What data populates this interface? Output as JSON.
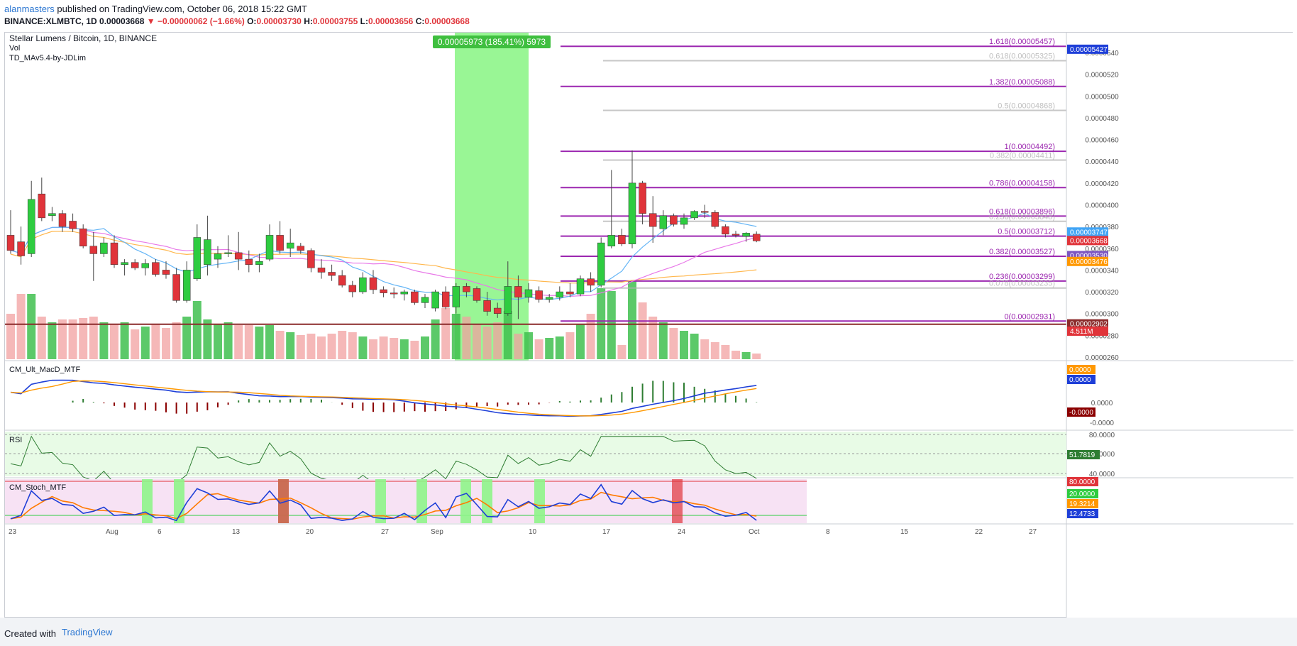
{
  "header": {
    "user": "alanmasters",
    "published_text": " published on TradingView.com, October 06, 2018 15:22 GMT",
    "symbol": "BINANCE:XLMBTC, 1D",
    "price": "0.00003668",
    "change": "▼ −0.00000062 (−1.66%)",
    "open_label": "O:",
    "open": "0.00003730",
    "high_label": "H:",
    "high": "0.00003755",
    "low_label": "L:",
    "low": "0.00003656",
    "close_label": "C:",
    "close": "0.00003668"
  },
  "legend": {
    "title": "Stellar Lumens / Bitcoin, 1D, BINANCE",
    "vol": "Vol",
    "td": "TD_MAv5.4-by-JDLim"
  },
  "measure_label": "0.00005973 (185.41%) 5973",
  "fib_levels": [
    {
      "label": "1.618(0.00005457)",
      "price": 5.457e-05,
      "color": "#9c27b0",
      "set": "A"
    },
    {
      "label": "1.382(0.00005088)",
      "price": 5.088e-05,
      "color": "#9c27b0",
      "set": "A"
    },
    {
      "label": "1(0.00004492)",
      "price": 4.492e-05,
      "color": "#9c27b0",
      "set": "A"
    },
    {
      "label": "0.786(0.00004158)",
      "price": 4.158e-05,
      "color": "#9c27b0",
      "set": "A"
    },
    {
      "label": "0.618(0.00003896)",
      "price": 3.896e-05,
      "color": "#9c27b0",
      "set": "A"
    },
    {
      "label": "0.5(0.00003712)",
      "price": 3.712e-05,
      "color": "#9c27b0",
      "set": "A"
    },
    {
      "label": "0.382(0.00003527)",
      "price": 3.527e-05,
      "color": "#9c27b0",
      "set": "A"
    },
    {
      "label": "0.236(0.00003299)",
      "price": 3.299e-05,
      "color": "#9c27b0",
      "set": "A"
    },
    {
      "label": "0(0.00002931)",
      "price": 2.931e-05,
      "color": "#9c27b0",
      "set": "A"
    },
    {
      "label": "0.618(0.00005325)",
      "price": 5.325e-05,
      "color": "#b0b0b0",
      "set": "B"
    },
    {
      "label": "0.5(0.00004868)",
      "price": 4.868e-05,
      "color": "#b0b0b0",
      "set": "B"
    },
    {
      "label": "0.382(0.00004411)",
      "price": 4.411e-05,
      "color": "#b0b0b0",
      "set": "B"
    },
    {
      "label": "0.236(0.00003848)",
      "price": 3.848e-05,
      "color": "#b0b0b0",
      "set": "B"
    },
    {
      "label": "0.078(0.00003235)",
      "price": 3.235e-05,
      "color": "#b0b0b0",
      "set": "B"
    }
  ],
  "price_axis_ticks": [
    "0.0000540",
    "0.0000520",
    "0.0000500",
    "0.0000480",
    "0.0000460",
    "0.0000440",
    "0.0000420",
    "0.0000400",
    "0.0000380",
    "0.0000360",
    "0.0000340",
    "0.0000320",
    "0.0000300",
    "0.0000280",
    "0.0000260"
  ],
  "price_axis_values": [
    5.4e-05,
    5.2e-05,
    5e-05,
    4.8e-05,
    4.6e-05,
    4.4e-05,
    4.2e-05,
    4e-05,
    3.8e-05,
    3.6e-05,
    3.4e-05,
    3.2e-05,
    3e-05,
    2.8e-05,
    2.6e-05
  ],
  "price_badges": [
    {
      "label": "0.00005427",
      "value": 5.427e-05,
      "color": "#1e3fd8"
    },
    {
      "label": "0.00003747",
      "value": 3.747e-05,
      "color": "#42a5f5"
    },
    {
      "label": "0.00003668",
      "value": 3.668e-05,
      "color": "#e0343a"
    },
    {
      "label": "0.00003530",
      "value": 3.53e-05,
      "color": "#7e57c2"
    },
    {
      "label": "0.00003476",
      "value": 3.476e-05,
      "color": "#ff9800"
    },
    {
      "label": "0.00002902",
      "value": 2.902e-05,
      "color": "#8b2b2b"
    },
    {
      "label": "4.511M",
      "value": 2.835e-05,
      "color": "#e0343a"
    }
  ],
  "x_axis": [
    "23",
    "Aug",
    "6",
    "13",
    "20",
    "27",
    "Sep",
    "10",
    "17",
    "24",
    "Oct",
    "8",
    "15",
    "22",
    "27"
  ],
  "macd_title": "CM_Ult_MacD_MTF",
  "macd_badges": [
    {
      "label": "0.0000",
      "color": "#ff9800"
    },
    {
      "label": "0.0000",
      "color": "#1e3fd8"
    },
    {
      "label": "-0.0000",
      "color": "#8b0000"
    }
  ],
  "macd_axis": [
    "0.0000",
    "-0.0000"
  ],
  "rsi_title": "RSI",
  "rsi_axis": [
    "80.0000",
    "60.0000",
    "40.0000"
  ],
  "rsi_badge": "51.7819",
  "stoch_title": "CM_Stoch_MTF",
  "stoch_badges": [
    {
      "label": "80.0000",
      "color": "#e0343a"
    },
    {
      "label": "20.0000",
      "color": "#2ecc40"
    },
    {
      "label": "19.3214",
      "color": "#ff9800"
    },
    {
      "label": "12.4733",
      "color": "#1e3fd8"
    }
  ],
  "chart_data": {
    "type": "candlestick",
    "title": "Stellar Lumens / Bitcoin, 1D, BINANCE",
    "candles": [
      {
        "o": 3.72,
        "h": 3.95,
        "l": 3.55,
        "c": 3.58
      },
      {
        "o": 3.66,
        "h": 3.8,
        "l": 3.45,
        "c": 3.53
      },
      {
        "o": 3.55,
        "h": 4.22,
        "l": 3.52,
        "c": 4.05
      },
      {
        "o": 4.1,
        "h": 4.25,
        "l": 3.85,
        "c": 3.88
      },
      {
        "o": 3.9,
        "h": 3.98,
        "l": 3.85,
        "c": 3.92
      },
      {
        "o": 3.92,
        "h": 3.95,
        "l": 3.75,
        "c": 3.8
      },
      {
        "o": 3.85,
        "h": 3.92,
        "l": 3.75,
        "c": 3.78
      },
      {
        "o": 3.78,
        "h": 3.82,
        "l": 3.6,
        "c": 3.62
      },
      {
        "o": 3.62,
        "h": 3.75,
        "l": 3.3,
        "c": 3.55
      },
      {
        "o": 3.55,
        "h": 3.7,
        "l": 3.52,
        "c": 3.65
      },
      {
        "o": 3.65,
        "h": 3.72,
        "l": 3.42,
        "c": 3.45
      },
      {
        "o": 3.45,
        "h": 3.5,
        "l": 3.35,
        "c": 3.47
      },
      {
        "o": 3.47,
        "h": 3.5,
        "l": 3.4,
        "c": 3.42
      },
      {
        "o": 3.42,
        "h": 3.5,
        "l": 3.35,
        "c": 3.46
      },
      {
        "o": 3.47,
        "h": 3.5,
        "l": 3.34,
        "c": 3.36
      },
      {
        "o": 3.4,
        "h": 3.48,
        "l": 3.32,
        "c": 3.36
      },
      {
        "o": 3.36,
        "h": 3.42,
        "l": 3.1,
        "c": 3.12
      },
      {
        "o": 3.12,
        "h": 3.48,
        "l": 3.1,
        "c": 3.4
      },
      {
        "o": 3.32,
        "h": 3.82,
        "l": 3.3,
        "c": 3.7
      },
      {
        "o": 3.45,
        "h": 3.9,
        "l": 3.35,
        "c": 3.68
      },
      {
        "o": 3.5,
        "h": 3.62,
        "l": 3.42,
        "c": 3.55
      },
      {
        "o": 3.55,
        "h": 3.72,
        "l": 3.52,
        "c": 3.56
      },
      {
        "o": 3.56,
        "h": 3.75,
        "l": 3.4,
        "c": 3.5
      },
      {
        "o": 3.5,
        "h": 3.58,
        "l": 3.38,
        "c": 3.45
      },
      {
        "o": 3.45,
        "h": 3.55,
        "l": 3.38,
        "c": 3.48
      },
      {
        "o": 3.5,
        "h": 3.82,
        "l": 3.48,
        "c": 3.72
      },
      {
        "o": 3.72,
        "h": 3.85,
        "l": 3.55,
        "c": 3.58
      },
      {
        "o": 3.6,
        "h": 3.78,
        "l": 3.52,
        "c": 3.65
      },
      {
        "o": 3.62,
        "h": 3.65,
        "l": 3.55,
        "c": 3.58
      },
      {
        "o": 3.58,
        "h": 3.6,
        "l": 3.38,
        "c": 3.42
      },
      {
        "o": 3.42,
        "h": 3.5,
        "l": 3.32,
        "c": 3.38
      },
      {
        "o": 3.38,
        "h": 3.45,
        "l": 3.3,
        "c": 3.35
      },
      {
        "o": 3.35,
        "h": 3.4,
        "l": 3.24,
        "c": 3.26
      },
      {
        "o": 3.26,
        "h": 3.3,
        "l": 3.15,
        "c": 3.2
      },
      {
        "o": 3.2,
        "h": 3.38,
        "l": 3.18,
        "c": 3.33
      },
      {
        "o": 3.33,
        "h": 3.4,
        "l": 3.18,
        "c": 3.22
      },
      {
        "o": 3.22,
        "h": 3.25,
        "l": 3.15,
        "c": 3.19
      },
      {
        "o": 3.19,
        "h": 3.24,
        "l": 3.14,
        "c": 3.18
      },
      {
        "o": 3.18,
        "h": 3.22,
        "l": 3.12,
        "c": 3.2
      },
      {
        "o": 3.2,
        "h": 3.22,
        "l": 3.08,
        "c": 3.1
      },
      {
        "o": 3.1,
        "h": 3.18,
        "l": 3.05,
        "c": 3.15
      },
      {
        "o": 3.05,
        "h": 3.22,
        "l": 3.02,
        "c": 3.2
      },
      {
        "o": 3.2,
        "h": 3.25,
        "l": 3.04,
        "c": 3.06
      },
      {
        "o": 3.06,
        "h": 3.28,
        "l": 3.0,
        "c": 3.25
      },
      {
        "o": 3.25,
        "h": 3.28,
        "l": 3.15,
        "c": 3.2
      },
      {
        "o": 3.23,
        "h": 3.25,
        "l": 3.1,
        "c": 3.12
      },
      {
        "o": 3.12,
        "h": 3.2,
        "l": 2.98,
        "c": 3.02
      },
      {
        "o": 3.05,
        "h": 3.1,
        "l": 2.96,
        "c": 3.0
      },
      {
        "o": 3.0,
        "h": 3.48,
        "l": 2.98,
        "c": 3.25
      },
      {
        "o": 3.25,
        "h": 3.35,
        "l": 2.95,
        "c": 3.15
      },
      {
        "o": 3.15,
        "h": 3.28,
        "l": 3.1,
        "c": 3.22
      },
      {
        "o": 3.21,
        "h": 3.25,
        "l": 3.1,
        "c": 3.13
      },
      {
        "o": 3.13,
        "h": 3.18,
        "l": 3.1,
        "c": 3.15
      },
      {
        "o": 3.15,
        "h": 3.25,
        "l": 3.12,
        "c": 3.2
      },
      {
        "o": 3.2,
        "h": 3.28,
        "l": 3.15,
        "c": 3.18
      },
      {
        "o": 3.18,
        "h": 3.35,
        "l": 3.16,
        "c": 3.32
      },
      {
        "o": 3.32,
        "h": 3.38,
        "l": 3.2,
        "c": 3.26
      },
      {
        "o": 3.26,
        "h": 3.7,
        "l": 3.24,
        "c": 3.65
      },
      {
        "o": 3.62,
        "h": 4.32,
        "l": 3.6,
        "c": 3.72
      },
      {
        "o": 3.72,
        "h": 3.78,
        "l": 3.62,
        "c": 3.64
      },
      {
        "o": 3.64,
        "h": 4.5,
        "l": 3.6,
        "c": 4.2
      },
      {
        "o": 4.2,
        "h": 4.22,
        "l": 3.82,
        "c": 3.92
      },
      {
        "o": 3.92,
        "h": 4.08,
        "l": 3.65,
        "c": 3.8
      },
      {
        "o": 3.78,
        "h": 3.95,
        "l": 3.72,
        "c": 3.9
      },
      {
        "o": 3.9,
        "h": 3.92,
        "l": 3.8,
        "c": 3.82
      },
      {
        "o": 3.82,
        "h": 3.92,
        "l": 3.78,
        "c": 3.88
      },
      {
        "o": 3.88,
        "h": 3.95,
        "l": 3.86,
        "c": 3.94
      },
      {
        "o": 3.94,
        "h": 4.0,
        "l": 3.88,
        "c": 3.93
      },
      {
        "o": 3.93,
        "h": 3.95,
        "l": 3.78,
        "c": 3.8
      },
      {
        "o": 3.8,
        "h": 3.82,
        "l": 3.7,
        "c": 3.73
      },
      {
        "o": 3.73,
        "h": 3.76,
        "l": 3.7,
        "c": 3.72
      },
      {
        "o": 3.71,
        "h": 3.75,
        "l": 3.66,
        "c": 3.74
      },
      {
        "o": 3.73,
        "h": 3.755,
        "l": 3.656,
        "c": 3.668
      }
    ],
    "volume": [
      3.2,
      4.6,
      4.6,
      3.0,
      2.6,
      2.8,
      2.8,
      2.9,
      3.0,
      2.6,
      2.5,
      2.6,
      2.1,
      2.3,
      2.5,
      2.2,
      2.6,
      3.0,
      4.1,
      2.8,
      2.5,
      2.6,
      2.4,
      2.4,
      2.3,
      2.4,
      2.0,
      1.9,
      1.7,
      1.8,
      1.6,
      1.8,
      2.0,
      1.9,
      1.6,
      1.4,
      1.6,
      1.5,
      1.4,
      1.3,
      1.6,
      2.8,
      3.6,
      3.2,
      3.0,
      2.5,
      2.3,
      2.6,
      3.4,
      1.8,
      1.9,
      1.4,
      1.5,
      1.6,
      1.9,
      2.5,
      3.2,
      5.0,
      4.8,
      1.0,
      5.5,
      4.0,
      3.0,
      2.6,
      2.2,
      2.0,
      1.8,
      1.4,
      1.2,
      1.0,
      0.6,
      0.5,
      0.4
    ],
    "y_unit": "BTC",
    "y_range": [
      2.6e-05,
      5.5e-05
    ]
  }
}
